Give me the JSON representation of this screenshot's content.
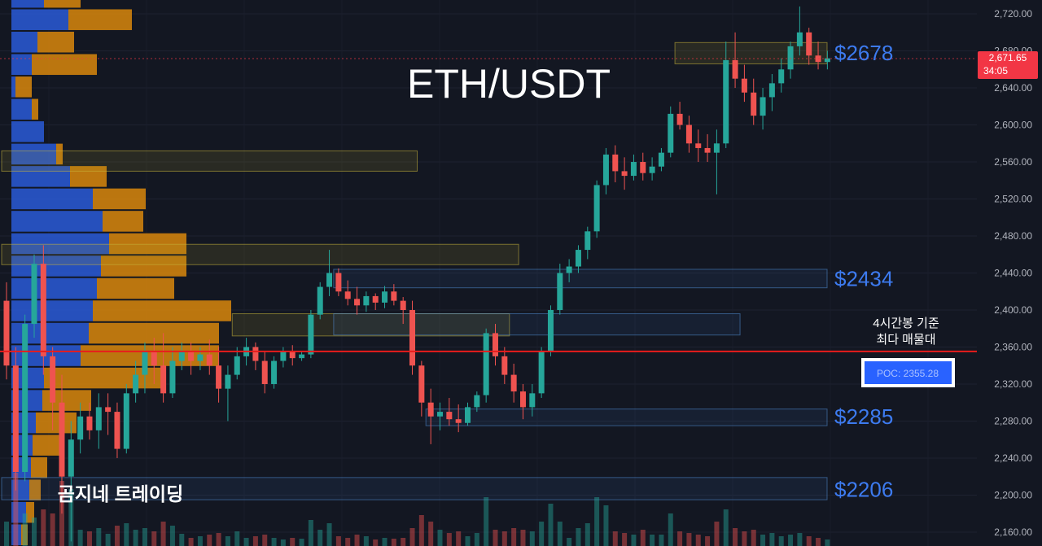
{
  "chart_data": {
    "type": "candlestick",
    "title": "ETH/USDT",
    "watermark": "곰지네 트레이딩",
    "y_axis": {
      "ylim": [
        2145,
        2735
      ],
      "tick_values": [
        2160,
        2200,
        2240,
        2280,
        2320,
        2360,
        2400,
        2440,
        2480,
        2520,
        2560,
        2600,
        2640,
        2680,
        2720
      ],
      "tick_labels": [
        "2,160.00",
        "2,200.00",
        "2,240.00",
        "2,280.00",
        "2,320.00",
        "2,360.00",
        "2,400.00",
        "2,440.00",
        "2,480.00",
        "2,520.00",
        "2,560.00",
        "2,600.00",
        "2,640.00",
        "2,680.00",
        "2,720.00"
      ],
      "position": "right"
    },
    "current_price": {
      "label": "2,671.65",
      "countdown": "34:05",
      "value": 2671.65
    },
    "poc": {
      "label": "POC: 2355.28",
      "value": 2355.28,
      "note_line1": "4시간봉 기준",
      "note_line2": "최다 매물대"
    },
    "price_labels": [
      {
        "text": "$2678",
        "value": 2678
      },
      {
        "text": "$2434",
        "value": 2434
      },
      {
        "text": "$2285",
        "value": 2285
      },
      {
        "text": "$2206",
        "value": 2206
      }
    ],
    "zones": [
      {
        "kind": "supply",
        "low": 2666,
        "high": 2689,
        "start_index": 73,
        "end_index": 89
      },
      {
        "kind": "supply",
        "low": 2550,
        "high": 2572,
        "start_index": 0,
        "end_index": 44
      },
      {
        "kind": "supply",
        "low": 2449,
        "high": 2471,
        "start_index": 0,
        "end_index": 55
      },
      {
        "kind": "supply",
        "low": 2372,
        "high": 2396,
        "start_index": 25,
        "end_index": 54
      },
      {
        "kind": "demand",
        "low": 2424,
        "high": 2444,
        "start_index": 36,
        "end_index": 89
      },
      {
        "kind": "demand",
        "low": 2373,
        "high": 2396,
        "start_index": 36,
        "end_index": 79
      },
      {
        "kind": "demand",
        "low": 2275,
        "high": 2293,
        "start_index": 46,
        "end_index": 89
      },
      {
        "kind": "demand",
        "low": 2195,
        "high": 2219,
        "start_index": 0,
        "end_index": 89
      }
    ],
    "volume_profile": {
      "price_step": 24.2,
      "start_price": 2145,
      "buy": [
        12,
        18,
        22,
        24,
        26,
        30,
        38,
        40,
        85,
        95,
        100,
        105,
        110,
        120,
        112,
        100,
        72,
        55,
        40,
        25,
        5,
        25,
        32,
        70,
        40,
        70,
        30,
        38,
        42,
        55,
        0
      ],
      "sell": [
        8,
        10,
        14,
        20,
        35,
        50,
        60,
        150,
        170,
        160,
        170,
        95,
        105,
        95,
        50,
        65,
        45,
        8,
        0,
        8,
        20,
        80,
        45,
        78,
        45,
        85,
        90,
        85,
        40,
        0,
        0
      ]
    },
    "candles": [
      [
        2410,
        2430,
        2325,
        2340
      ],
      [
        2340,
        2360,
        2205,
        2225
      ],
      [
        2225,
        2395,
        2215,
        2385
      ],
      [
        2385,
        2460,
        2370,
        2450
      ],
      [
        2450,
        2470,
        2330,
        2350
      ],
      [
        2350,
        2360,
        2270,
        2300
      ],
      [
        2300,
        2330,
        2180,
        2220
      ],
      [
        2220,
        2280,
        2150,
        2260
      ],
      [
        2260,
        2300,
        2245,
        2285
      ],
      [
        2285,
        2300,
        2260,
        2270
      ],
      [
        2270,
        2310,
        2250,
        2295
      ],
      [
        2295,
        2310,
        2265,
        2290
      ],
      [
        2290,
        2300,
        2240,
        2250
      ],
      [
        2250,
        2320,
        2245,
        2310
      ],
      [
        2310,
        2345,
        2300,
        2330
      ],
      [
        2330,
        2365,
        2310,
        2355
      ],
      [
        2355,
        2370,
        2320,
        2340
      ],
      [
        2340,
        2375,
        2300,
        2310
      ],
      [
        2310,
        2360,
        2305,
        2345
      ],
      [
        2345,
        2365,
        2335,
        2355
      ],
      [
        2355,
        2365,
        2330,
        2345
      ],
      [
        2345,
        2360,
        2335,
        2352
      ],
      [
        2352,
        2368,
        2330,
        2340
      ],
      [
        2340,
        2360,
        2300,
        2315
      ],
      [
        2315,
        2340,
        2280,
        2330
      ],
      [
        2330,
        2360,
        2325,
        2350
      ],
      [
        2350,
        2370,
        2340,
        2360
      ],
      [
        2360,
        2365,
        2335,
        2345
      ],
      [
        2345,
        2355,
        2310,
        2320
      ],
      [
        2320,
        2350,
        2315,
        2345
      ],
      [
        2345,
        2360,
        2338,
        2355
      ],
      [
        2355,
        2362,
        2340,
        2348
      ],
      [
        2348,
        2356,
        2345,
        2352
      ],
      [
        2352,
        2400,
        2348,
        2395
      ],
      [
        2395,
        2430,
        2390,
        2425
      ],
      [
        2425,
        2465,
        2415,
        2440
      ],
      [
        2440,
        2445,
        2415,
        2420
      ],
      [
        2420,
        2432,
        2405,
        2412
      ],
      [
        2412,
        2425,
        2395,
        2405
      ],
      [
        2405,
        2420,
        2398,
        2415
      ],
      [
        2415,
        2418,
        2400,
        2408
      ],
      [
        2408,
        2426,
        2402,
        2420
      ],
      [
        2420,
        2428,
        2405,
        2410
      ],
      [
        2410,
        2414,
        2385,
        2400
      ],
      [
        2400,
        2410,
        2330,
        2340
      ],
      [
        2340,
        2345,
        2285,
        2300
      ],
      [
        2300,
        2315,
        2255,
        2285
      ],
      [
        2285,
        2300,
        2270,
        2290
      ],
      [
        2290,
        2305,
        2275,
        2282
      ],
      [
        2282,
        2298,
        2268,
        2278
      ],
      [
        2278,
        2300,
        2275,
        2295
      ],
      [
        2295,
        2312,
        2290,
        2308
      ],
      [
        2308,
        2380,
        2300,
        2375
      ],
      [
        2375,
        2385,
        2340,
        2350
      ],
      [
        2350,
        2360,
        2320,
        2330
      ],
      [
        2330,
        2342,
        2300,
        2312
      ],
      [
        2312,
        2320,
        2282,
        2295
      ],
      [
        2295,
        2320,
        2285,
        2310
      ],
      [
        2310,
        2360,
        2305,
        2355
      ],
      [
        2355,
        2405,
        2350,
        2400
      ],
      [
        2400,
        2450,
        2395,
        2440
      ],
      [
        2440,
        2455,
        2430,
        2447
      ],
      [
        2447,
        2470,
        2440,
        2465
      ],
      [
        2465,
        2490,
        2455,
        2485
      ],
      [
        2485,
        2540,
        2478,
        2535
      ],
      [
        2535,
        2575,
        2525,
        2568
      ],
      [
        2568,
        2578,
        2538,
        2550
      ],
      [
        2550,
        2565,
        2530,
        2545
      ],
      [
        2545,
        2568,
        2540,
        2560
      ],
      [
        2560,
        2570,
        2540,
        2548
      ],
      [
        2548,
        2565,
        2540,
        2555
      ],
      [
        2555,
        2575,
        2550,
        2570
      ],
      [
        2570,
        2620,
        2565,
        2612
      ],
      [
        2612,
        2625,
        2595,
        2600
      ],
      [
        2600,
        2610,
        2570,
        2580
      ],
      [
        2580,
        2595,
        2560,
        2575
      ],
      [
        2575,
        2590,
        2560,
        2570
      ],
      [
        2570,
        2595,
        2525,
        2580
      ],
      [
        2580,
        2690,
        2575,
        2670
      ],
      [
        2670,
        2700,
        2640,
        2650
      ],
      [
        2650,
        2665,
        2625,
        2635
      ],
      [
        2635,
        2650,
        2600,
        2610
      ],
      [
        2610,
        2640,
        2595,
        2630
      ],
      [
        2630,
        2655,
        2615,
        2645
      ],
      [
        2645,
        2672,
        2635,
        2660
      ],
      [
        2660,
        2690,
        2650,
        2685
      ],
      [
        2685,
        2728,
        2675,
        2700
      ],
      [
        2700,
        2705,
        2665,
        2675
      ],
      [
        2675,
        2690,
        2660,
        2668
      ],
      [
        2668,
        2680,
        2660,
        2672
      ]
    ],
    "volumes": [
      [
        30,
        1
      ],
      [
        90,
        0
      ],
      [
        40,
        1
      ],
      [
        35,
        1
      ],
      [
        45,
        0
      ],
      [
        40,
        0
      ],
      [
        80,
        0
      ],
      [
        70,
        1
      ],
      [
        20,
        1
      ],
      [
        18,
        0
      ],
      [
        22,
        1
      ],
      [
        15,
        1
      ],
      [
        25,
        0
      ],
      [
        28,
        1
      ],
      [
        20,
        1
      ],
      [
        22,
        1
      ],
      [
        18,
        0
      ],
      [
        30,
        0
      ],
      [
        25,
        1
      ],
      [
        15,
        1
      ],
      [
        10,
        0
      ],
      [
        12,
        1
      ],
      [
        14,
        0
      ],
      [
        16,
        0
      ],
      [
        12,
        1
      ],
      [
        18,
        1
      ],
      [
        10,
        1
      ],
      [
        12,
        0
      ],
      [
        14,
        0
      ],
      [
        10,
        1
      ],
      [
        8,
        1
      ],
      [
        10,
        0
      ],
      [
        9,
        1
      ],
      [
        32,
        1
      ],
      [
        20,
        1
      ],
      [
        28,
        1
      ],
      [
        12,
        0
      ],
      [
        10,
        0
      ],
      [
        14,
        0
      ],
      [
        12,
        1
      ],
      [
        8,
        0
      ],
      [
        10,
        1
      ],
      [
        9,
        0
      ],
      [
        10,
        0
      ],
      [
        22,
        0
      ],
      [
        38,
        0
      ],
      [
        30,
        0
      ],
      [
        20,
        1
      ],
      [
        16,
        0
      ],
      [
        18,
        0
      ],
      [
        12,
        1
      ],
      [
        16,
        1
      ],
      [
        60,
        1
      ],
      [
        20,
        0
      ],
      [
        18,
        0
      ],
      [
        22,
        0
      ],
      [
        20,
        0
      ],
      [
        18,
        1
      ],
      [
        30,
        1
      ],
      [
        52,
        1
      ],
      [
        30,
        1
      ],
      [
        10,
        1
      ],
      [
        22,
        1
      ],
      [
        28,
        1
      ],
      [
        60,
        1
      ],
      [
        50,
        1
      ],
      [
        18,
        0
      ],
      [
        16,
        0
      ],
      [
        14,
        1
      ],
      [
        20,
        0
      ],
      [
        14,
        1
      ],
      [
        14,
        1
      ],
      [
        40,
        1
      ],
      [
        18,
        0
      ],
      [
        16,
        0
      ],
      [
        14,
        0
      ],
      [
        12,
        0
      ],
      [
        30,
        0
      ],
      [
        45,
        1
      ],
      [
        22,
        0
      ],
      [
        18,
        0
      ],
      [
        20,
        0
      ],
      [
        14,
        1
      ],
      [
        16,
        1
      ],
      [
        12,
        1
      ],
      [
        14,
        1
      ],
      [
        16,
        1
      ],
      [
        12,
        0
      ],
      [
        10,
        0
      ],
      [
        8,
        1
      ]
    ],
    "colors": {
      "background": "#131722",
      "up": "#26a69a",
      "down": "#ef5350",
      "price_label": "#3d7bf0",
      "poc_line": "#e81c1c",
      "current_price_tag": "#f23645",
      "profile_buy": "#2a5bd7",
      "profile_sell": "#d9870c"
    }
  }
}
